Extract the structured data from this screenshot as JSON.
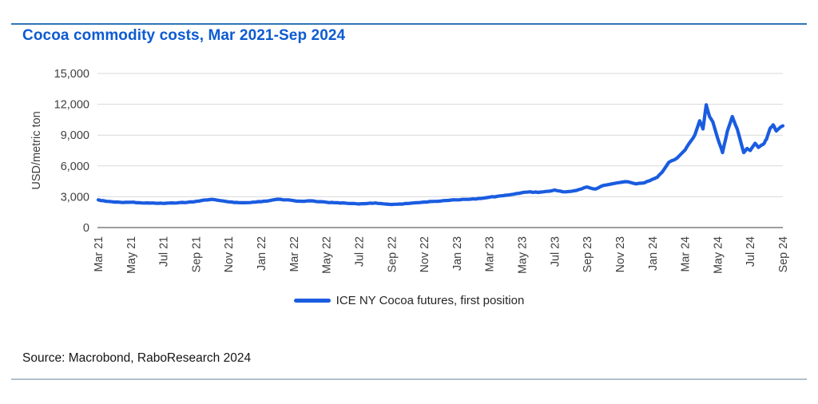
{
  "page": {
    "title": "Cocoa commodity costs, Mar 2021-Sep 2024",
    "source": "Source: Macrobond, RaboResearch 2024"
  },
  "legend": {
    "label": "ICE NY Cocoa futures, first position"
  },
  "colors": {
    "title_blue": "#0d5bd2",
    "line_blue": "#1a5ce0",
    "top_rule": "#2e75b6",
    "bottom_rule": "#b2c0ca",
    "grid": "#d9d9d9",
    "axis": "#7f7f7f",
    "tick_text": "#404040"
  },
  "chart_data": {
    "type": "line",
    "title": "Cocoa commodity costs, Mar 2021-Sep 2024",
    "xlabel": "",
    "ylabel": "USD/metric ton",
    "ylim": [
      0,
      15000
    ],
    "grid": "horizontal",
    "legend_position": "bottom-center",
    "y_ticks": [
      {
        "value": 0,
        "label": "0"
      },
      {
        "value": 3000,
        "label": "3,000"
      },
      {
        "value": 6000,
        "label": "6,000"
      },
      {
        "value": 9000,
        "label": "9,000"
      },
      {
        "value": 12000,
        "label": "12,000"
      },
      {
        "value": 15000,
        "label": "15,000"
      }
    ],
    "x_tick_labels": [
      "Mar 21",
      "May 21",
      "Jul 21",
      "Sep 21",
      "Nov 21",
      "Jan 22",
      "Mar 22",
      "May 22",
      "Jul 22",
      "Sep 22",
      "Nov 22",
      "Jan 23",
      "Mar 23",
      "May 23",
      "Jul 23",
      "Sep 23",
      "Nov 23",
      "Jan 24",
      "Mar 24",
      "May 24",
      "Jul 24",
      "Sep 24"
    ],
    "x_tick_positions_months": [
      0,
      2,
      4,
      6,
      8,
      10,
      12,
      14,
      16,
      18,
      20,
      22,
      24,
      26,
      28,
      30,
      32,
      34,
      36,
      38,
      40,
      42
    ],
    "x_axis_note": "months elapsed since Mar 2021",
    "series": [
      {
        "name": "ICE NY Cocoa futures, first position",
        "color": "#1a5ce0",
        "points": [
          [
            0,
            2700
          ],
          [
            0.5,
            2550
          ],
          [
            1,
            2480
          ],
          [
            1.5,
            2430
          ],
          [
            2,
            2460
          ],
          [
            2.5,
            2420
          ],
          [
            3,
            2400
          ],
          [
            3.5,
            2370
          ],
          [
            4,
            2350
          ],
          [
            4.5,
            2400
          ],
          [
            5,
            2430
          ],
          [
            5.5,
            2460
          ],
          [
            6,
            2550
          ],
          [
            6.5,
            2680
          ],
          [
            7,
            2740
          ],
          [
            7.5,
            2620
          ],
          [
            8,
            2500
          ],
          [
            8.5,
            2450
          ],
          [
            9,
            2420
          ],
          [
            9.5,
            2470
          ],
          [
            10,
            2520
          ],
          [
            10.5,
            2620
          ],
          [
            11,
            2760
          ],
          [
            11.5,
            2700
          ],
          [
            12,
            2620
          ],
          [
            12.5,
            2560
          ],
          [
            13,
            2600
          ],
          [
            13.5,
            2520
          ],
          [
            14,
            2460
          ],
          [
            14.5,
            2420
          ],
          [
            15,
            2400
          ],
          [
            15.5,
            2340
          ],
          [
            16,
            2290
          ],
          [
            16.5,
            2340
          ],
          [
            17,
            2390
          ],
          [
            17.5,
            2310
          ],
          [
            18,
            2250
          ],
          [
            18.5,
            2290
          ],
          [
            19,
            2340
          ],
          [
            19.5,
            2420
          ],
          [
            20,
            2480
          ],
          [
            20.5,
            2540
          ],
          [
            21,
            2580
          ],
          [
            21.5,
            2640
          ],
          [
            22,
            2700
          ],
          [
            22.5,
            2740
          ],
          [
            23,
            2790
          ],
          [
            23.5,
            2840
          ],
          [
            24,
            2950
          ],
          [
            24.5,
            3050
          ],
          [
            25,
            3150
          ],
          [
            25.5,
            3250
          ],
          [
            26,
            3400
          ],
          [
            26.5,
            3480
          ],
          [
            27,
            3420
          ],
          [
            27.5,
            3520
          ],
          [
            28,
            3650
          ],
          [
            28.5,
            3480
          ],
          [
            29,
            3520
          ],
          [
            29.5,
            3700
          ],
          [
            30,
            3950
          ],
          [
            30.5,
            3750
          ],
          [
            31,
            4100
          ],
          [
            31.5,
            4250
          ],
          [
            32,
            4380
          ],
          [
            32.5,
            4450
          ],
          [
            33,
            4250
          ],
          [
            33.5,
            4350
          ],
          [
            34,
            4700
          ],
          [
            34.3,
            4900
          ],
          [
            34.6,
            5400
          ],
          [
            35,
            6350
          ],
          [
            35.5,
            6750
          ],
          [
            36,
            7550
          ],
          [
            36.3,
            8300
          ],
          [
            36.6,
            9000
          ],
          [
            36.9,
            10400
          ],
          [
            37.1,
            9600
          ],
          [
            37.3,
            11950
          ],
          [
            37.5,
            10800
          ],
          [
            37.7,
            10300
          ],
          [
            38,
            8700
          ],
          [
            38.3,
            7300
          ],
          [
            38.6,
            9400
          ],
          [
            38.9,
            10800
          ],
          [
            39.2,
            9600
          ],
          [
            39.6,
            7300
          ],
          [
            39.8,
            7700
          ],
          [
            40,
            7500
          ],
          [
            40.3,
            8200
          ],
          [
            40.5,
            7800
          ],
          [
            40.8,
            8100
          ],
          [
            41,
            8600
          ],
          [
            41.2,
            9600
          ],
          [
            41.4,
            10000
          ],
          [
            41.6,
            9400
          ],
          [
            41.8,
            9700
          ],
          [
            42,
            9900
          ]
        ]
      }
    ]
  }
}
